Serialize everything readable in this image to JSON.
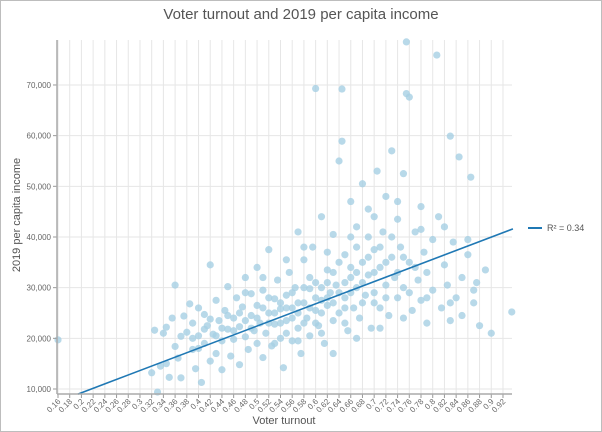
{
  "chart_data": {
    "type": "scatter",
    "title": "Voter turnout and 2019 per capita income",
    "xlabel": "Voter turnout",
    "ylabel": "2019 per capita income",
    "xlim": [
      0.155,
      0.94
    ],
    "ylim": [
      9000,
      79500
    ],
    "x_ticks": [
      "0.16",
      "0.18",
      "0.2",
      "0.22",
      "0.24",
      "0.26",
      "0.28",
      "0.3",
      "0.32",
      "0.34",
      "0.36",
      "0.38",
      "0.4",
      "0.42",
      "0.44",
      "0.46",
      "0.48",
      "0.5",
      "0.52",
      "0.54",
      "0.56",
      "0.58",
      "0.6",
      "0.62",
      "0.64",
      "0.66",
      "0.68",
      "0.7",
      "0.72",
      "0.74",
      "0.76",
      "0.78",
      "0.8",
      "0.82",
      "0.84",
      "0.86",
      "0.88",
      "0.9",
      "0.92"
    ],
    "y_ticks": [
      "10,000",
      "20,000",
      "30,000",
      "40,000",
      "50,000",
      "60,000",
      "70,000"
    ],
    "grid": true,
    "legend": {
      "position": "right",
      "entries": [
        "R² = 0.34"
      ]
    },
    "colors": {
      "points": "#a6cfe4",
      "trendline": "#1f78b4"
    },
    "trendline": {
      "r_squared": 0.34,
      "x": [
        0.194,
        0.937
      ],
      "y": [
        9000,
        41600
      ]
    },
    "points": [
      [
        0.16,
        19700
      ],
      [
        0.32,
        13200
      ],
      [
        0.325,
        21600
      ],
      [
        0.33,
        9400
      ],
      [
        0.335,
        14500
      ],
      [
        0.34,
        21000
      ],
      [
        0.345,
        22200
      ],
      [
        0.345,
        15000
      ],
      [
        0.35,
        12300
      ],
      [
        0.355,
        24000
      ],
      [
        0.36,
        30500
      ],
      [
        0.36,
        18400
      ],
      [
        0.365,
        16100
      ],
      [
        0.37,
        20400
      ],
      [
        0.37,
        12200
      ],
      [
        0.375,
        24400
      ],
      [
        0.38,
        21200
      ],
      [
        0.385,
        26800
      ],
      [
        0.39,
        23000
      ],
      [
        0.39,
        17800
      ],
      [
        0.395,
        14000
      ],
      [
        0.4,
        20500
      ],
      [
        0.4,
        26000
      ],
      [
        0.405,
        11300
      ],
      [
        0.41,
        24700
      ],
      [
        0.41,
        19000
      ],
      [
        0.415,
        22500
      ],
      [
        0.42,
        15500
      ],
      [
        0.42,
        34500
      ],
      [
        0.425,
        20800
      ],
      [
        0.43,
        27500
      ],
      [
        0.43,
        17000
      ],
      [
        0.435,
        23500
      ],
      [
        0.44,
        19500
      ],
      [
        0.44,
        13800
      ],
      [
        0.445,
        25500
      ],
      [
        0.45,
        21800
      ],
      [
        0.45,
        30200
      ],
      [
        0.455,
        16500
      ],
      [
        0.46,
        24000
      ],
      [
        0.46,
        19800
      ],
      [
        0.465,
        28000
      ],
      [
        0.47,
        22300
      ],
      [
        0.47,
        14800
      ],
      [
        0.475,
        26200
      ],
      [
        0.48,
        20300
      ],
      [
        0.48,
        32000
      ],
      [
        0.485,
        17800
      ],
      [
        0.49,
        24500
      ],
      [
        0.49,
        28800
      ],
      [
        0.495,
        21500
      ],
      [
        0.5,
        19000
      ],
      [
        0.5,
        26500
      ],
      [
        0.5,
        34000
      ],
      [
        0.505,
        23000
      ],
      [
        0.51,
        16200
      ],
      [
        0.51,
        29500
      ],
      [
        0.515,
        21000
      ],
      [
        0.52,
        25000
      ],
      [
        0.52,
        37500
      ],
      [
        0.525,
        18500
      ],
      [
        0.53,
        27800
      ],
      [
        0.53,
        22800
      ],
      [
        0.535,
        31500
      ],
      [
        0.54,
        20000
      ],
      [
        0.54,
        25800
      ],
      [
        0.545,
        14200
      ],
      [
        0.55,
        28500
      ],
      [
        0.55,
        23500
      ],
      [
        0.555,
        33000
      ],
      [
        0.56,
        19500
      ],
      [
        0.56,
        26000
      ],
      [
        0.565,
        30000
      ],
      [
        0.57,
        22000
      ],
      [
        0.57,
        41000
      ],
      [
        0.575,
        17000
      ],
      [
        0.58,
        27000
      ],
      [
        0.58,
        35500
      ],
      [
        0.585,
        24000
      ],
      [
        0.59,
        29800
      ],
      [
        0.59,
        20500
      ],
      [
        0.595,
        38000
      ],
      [
        0.6,
        25500
      ],
      [
        0.6,
        31000
      ],
      [
        0.6,
        69300
      ],
      [
        0.605,
        22500
      ],
      [
        0.61,
        27500
      ],
      [
        0.61,
        44000
      ],
      [
        0.615,
        19000
      ],
      [
        0.62,
        33500
      ],
      [
        0.62,
        26500
      ],
      [
        0.625,
        29000
      ],
      [
        0.63,
        23500
      ],
      [
        0.63,
        40500
      ],
      [
        0.635,
        30500
      ],
      [
        0.64,
        25000
      ],
      [
        0.64,
        55000
      ],
      [
        0.645,
        58900
      ],
      [
        0.645,
        69200
      ],
      [
        0.65,
        28000
      ],
      [
        0.65,
        36500
      ],
      [
        0.655,
        21500
      ],
      [
        0.66,
        32000
      ],
      [
        0.66,
        47000
      ],
      [
        0.665,
        26000
      ],
      [
        0.67,
        30000
      ],
      [
        0.67,
        42000
      ],
      [
        0.675,
        24000
      ],
      [
        0.68,
        35000
      ],
      [
        0.68,
        50500
      ],
      [
        0.685,
        28500
      ],
      [
        0.69,
        32500
      ],
      [
        0.69,
        45500
      ],
      [
        0.695,
        22000
      ],
      [
        0.7,
        37500
      ],
      [
        0.7,
        29000
      ],
      [
        0.705,
        53000
      ],
      [
        0.71,
        34000
      ],
      [
        0.71,
        26000
      ],
      [
        0.715,
        41000
      ],
      [
        0.72,
        30500
      ],
      [
        0.72,
        48000
      ],
      [
        0.725,
        24500
      ],
      [
        0.73,
        36000
      ],
      [
        0.73,
        57000
      ],
      [
        0.735,
        32000
      ],
      [
        0.74,
        28000
      ],
      [
        0.74,
        43500
      ],
      [
        0.745,
        38000
      ],
      [
        0.75,
        52500
      ],
      [
        0.75,
        30000
      ],
      [
        0.755,
        78500
      ],
      [
        0.755,
        68300
      ],
      [
        0.76,
        67600
      ],
      [
        0.76,
        35000
      ],
      [
        0.765,
        25500
      ],
      [
        0.77,
        41000
      ],
      [
        0.775,
        31500
      ],
      [
        0.78,
        46000
      ],
      [
        0.78,
        27500
      ],
      [
        0.785,
        37000
      ],
      [
        0.79,
        33000
      ],
      [
        0.79,
        23000
      ],
      [
        0.8,
        39500
      ],
      [
        0.8,
        29500
      ],
      [
        0.807,
        75900
      ],
      [
        0.81,
        44000
      ],
      [
        0.815,
        26000
      ],
      [
        0.82,
        34500
      ],
      [
        0.825,
        30500
      ],
      [
        0.83,
        59900
      ],
      [
        0.83,
        23500
      ],
      [
        0.835,
        39000
      ],
      [
        0.84,
        28000
      ],
      [
        0.845,
        55800
      ],
      [
        0.85,
        32000
      ],
      [
        0.85,
        24500
      ],
      [
        0.86,
        36500
      ],
      [
        0.865,
        51800
      ],
      [
        0.87,
        27000
      ],
      [
        0.875,
        31000
      ],
      [
        0.88,
        22500
      ],
      [
        0.89,
        33500
      ],
      [
        0.9,
        21000
      ],
      [
        0.935,
        25200
      ],
      [
        0.47,
        25000
      ],
      [
        0.48,
        23500
      ],
      [
        0.49,
        22000
      ],
      [
        0.5,
        24000
      ],
      [
        0.51,
        26000
      ],
      [
        0.52,
        23000
      ],
      [
        0.52,
        28000
      ],
      [
        0.53,
        25000
      ],
      [
        0.54,
        27000
      ],
      [
        0.54,
        23000
      ],
      [
        0.55,
        26000
      ],
      [
        0.55,
        21000
      ],
      [
        0.56,
        24000
      ],
      [
        0.56,
        29000
      ],
      [
        0.57,
        27000
      ],
      [
        0.57,
        25000
      ],
      [
        0.58,
        23000
      ],
      [
        0.58,
        30000
      ],
      [
        0.59,
        26000
      ],
      [
        0.59,
        32000
      ],
      [
        0.6,
        28000
      ],
      [
        0.6,
        23000
      ],
      [
        0.61,
        30000
      ],
      [
        0.61,
        25000
      ],
      [
        0.62,
        28000
      ],
      [
        0.62,
        31000
      ],
      [
        0.63,
        27000
      ],
      [
        0.63,
        33000
      ],
      [
        0.64,
        29000
      ],
      [
        0.64,
        35000
      ],
      [
        0.65,
        31000
      ],
      [
        0.65,
        26000
      ],
      [
        0.66,
        34000
      ],
      [
        0.66,
        29000
      ],
      [
        0.67,
        33000
      ],
      [
        0.67,
        38000
      ],
      [
        0.68,
        31000
      ],
      [
        0.68,
        27000
      ],
      [
        0.69,
        36000
      ],
      [
        0.69,
        40000
      ],
      [
        0.7,
        33000
      ],
      [
        0.7,
        27000
      ],
      [
        0.71,
        38000
      ],
      [
        0.72,
        35000
      ],
      [
        0.72,
        28000
      ],
      [
        0.73,
        40000
      ],
      [
        0.74,
        33000
      ],
      [
        0.75,
        36000
      ],
      [
        0.76,
        29000
      ],
      [
        0.77,
        34000
      ],
      [
        0.44,
        22000
      ],
      [
        0.45,
        24500
      ],
      [
        0.46,
        21500
      ],
      [
        0.43,
        20500
      ],
      [
        0.42,
        23800
      ],
      [
        0.41,
        21800
      ],
      [
        0.4,
        18000
      ],
      [
        0.39,
        20000
      ],
      [
        0.53,
        19000
      ],
      [
        0.57,
        19500
      ],
      [
        0.61,
        21000
      ],
      [
        0.65,
        23000
      ],
      [
        0.58,
        38000
      ],
      [
        0.62,
        37000
      ],
      [
        0.66,
        40000
      ],
      [
        0.7,
        44000
      ],
      [
        0.74,
        47000
      ],
      [
        0.78,
        41500
      ],
      [
        0.82,
        42000
      ],
      [
        0.86,
        39500
      ],
      [
        0.55,
        35500
      ],
      [
        0.51,
        32000
      ],
      [
        0.48,
        29000
      ],
      [
        0.63,
        17000
      ],
      [
        0.67,
        20000
      ],
      [
        0.71,
        22000
      ],
      [
        0.75,
        24000
      ],
      [
        0.79,
        28000
      ],
      [
        0.83,
        27000
      ],
      [
        0.87,
        29500
      ]
    ]
  }
}
